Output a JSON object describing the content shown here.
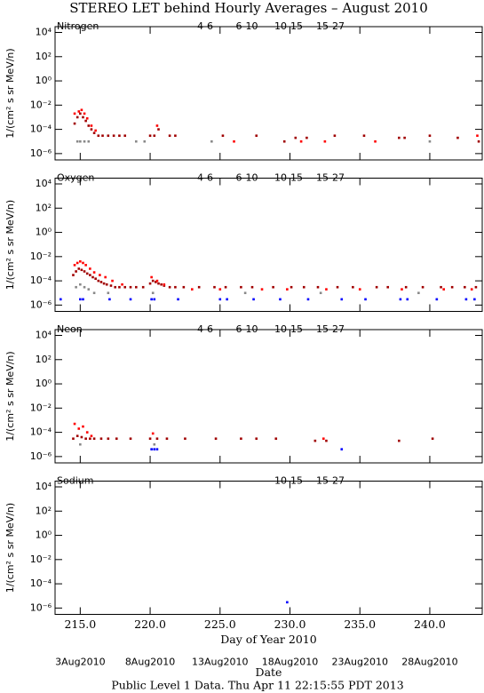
{
  "header": {
    "title": "STEREO LET behind Hourly Averages – August 2010"
  },
  "footer": {
    "text": "Public Level 1 Data. Thu Apr 11 22:15:55 PDT 2013"
  },
  "chart_data": [
    {
      "type": "scatter",
      "title": "Nitrogen",
      "ylabel": "1/(cm² s sr MeV/n)",
      "log_y": true,
      "xlim": [
        213.2,
        243.75
      ],
      "xticks": [
        215,
        220,
        225,
        230,
        235,
        240
      ],
      "ylim": [
        3e-07,
        30000
      ],
      "yticks": [
        {
          "value": 10000,
          "label": "10⁴"
        },
        {
          "value": 100,
          "label": "10²"
        },
        {
          "value": 1,
          "label": "10⁰"
        },
        {
          "value": 0.01,
          "label": "10⁻²"
        },
        {
          "value": 0.0001,
          "label": "10⁻⁴"
        },
        {
          "value": 1e-06,
          "label": "10⁻⁶"
        }
      ],
      "series": [
        {
          "name": "4-6",
          "color": "#a00000",
          "x": [
            214.6,
            214.8,
            215.0,
            215.2,
            215.4,
            215.6,
            215.8,
            216.0,
            216.3,
            216.6,
            217.0,
            217.4,
            217.8,
            218.2,
            220.0,
            220.3,
            220.6,
            221.4,
            221.8,
            225.2,
            227.6,
            229.6,
            230.4,
            231.2,
            233.2,
            235.3,
            237.8,
            238.2,
            240.0,
            242.0,
            243.5
          ],
          "values": [
            0.0003,
            0.001,
            0.002,
            0.001,
            0.0005,
            0.0002,
            0.0001,
            5e-05,
            3e-05,
            3e-05,
            3e-05,
            3e-05,
            3e-05,
            3e-05,
            3e-05,
            3e-05,
            0.0001,
            3e-05,
            3e-05,
            3e-05,
            3e-05,
            1e-05,
            2e-05,
            2e-05,
            3e-05,
            3e-05,
            2e-05,
            2e-05,
            3e-05,
            2e-05,
            1e-05
          ]
        },
        {
          "name": "6-10",
          "color": "#ff0000",
          "x": [
            214.6,
            214.9,
            215.1,
            215.3,
            215.5,
            215.8,
            216.1,
            220.5,
            226.0,
            230.8,
            232.5,
            236.1,
            243.4
          ],
          "values": [
            0.002,
            0.003,
            0.004,
            0.002,
            0.0008,
            0.0002,
            8e-05,
            0.0002,
            1e-05,
            1e-05,
            1e-05,
            1e-05,
            3e-05
          ]
        },
        {
          "name": "10-15",
          "color": "#888888",
          "x": [
            214.8,
            215.0,
            215.3,
            215.6,
            219.0,
            219.6,
            224.4,
            240.0
          ],
          "values": [
            1e-05,
            1e-05,
            1e-05,
            1e-05,
            1e-05,
            1e-05,
            1e-05,
            1e-05
          ]
        },
        {
          "name": "15-27",
          "color": "#0000ff",
          "x": [],
          "values": []
        }
      ]
    },
    {
      "type": "scatter",
      "title": "Oxygen",
      "ylabel": "1/(cm² s sr MeV/n)",
      "log_y": true,
      "xlim": [
        213.2,
        243.75
      ],
      "xticks": [
        215,
        220,
        225,
        230,
        235,
        240
      ],
      "ylim": [
        3e-07,
        30000
      ],
      "yticks": [
        {
          "value": 10000,
          "label": "10⁴"
        },
        {
          "value": 100,
          "label": "10²"
        },
        {
          "value": 1,
          "label": "10⁰"
        },
        {
          "value": 0.01,
          "label": "10⁻²"
        },
        {
          "value": 0.0001,
          "label": "10⁻⁴"
        },
        {
          "value": 1e-06,
          "label": "10⁻⁶"
        }
      ],
      "series": [
        {
          "name": "4-6",
          "color": "#a00000",
          "x": [
            214.5,
            214.7,
            214.9,
            215.1,
            215.3,
            215.5,
            215.7,
            215.9,
            216.1,
            216.3,
            216.5,
            216.7,
            216.9,
            217.2,
            217.5,
            217.8,
            218.2,
            218.6,
            219.0,
            219.5,
            220.0,
            220.2,
            220.4,
            220.6,
            220.8,
            221.0,
            221.4,
            221.8,
            222.4,
            223.5,
            224.6,
            225.4,
            226.5,
            227.3,
            228.8,
            230.1,
            231.0,
            232.0,
            233.4,
            234.5,
            236.2,
            237.0,
            238.3,
            239.5,
            240.8,
            241.6,
            242.5,
            243.3
          ],
          "values": [
            0.0003,
            0.0006,
            0.001,
            0.0008,
            0.0006,
            0.0004,
            0.0003,
            0.0002,
            0.00015,
            0.0001,
            8e-05,
            6e-05,
            5e-05,
            4e-05,
            3e-05,
            3e-05,
            3e-05,
            3e-05,
            3e-05,
            3e-05,
            6e-05,
            0.0001,
            8e-05,
            6e-05,
            5e-05,
            4e-05,
            3e-05,
            3e-05,
            3e-05,
            3e-05,
            3e-05,
            3e-05,
            3e-05,
            3e-05,
            3e-05,
            3e-05,
            3e-05,
            3e-05,
            3e-05,
            3e-05,
            3e-05,
            3e-05,
            3e-05,
            3e-05,
            3e-05,
            3e-05,
            3e-05,
            3e-05
          ]
        },
        {
          "name": "6-10",
          "color": "#ff0000",
          "x": [
            214.6,
            214.8,
            215.0,
            215.2,
            215.4,
            215.7,
            216.0,
            216.4,
            216.8,
            217.3,
            218.0,
            220.1,
            220.5,
            221.0,
            223.0,
            225.0,
            228.0,
            229.8,
            232.6,
            235.0,
            238.0,
            241.0,
            243.0
          ],
          "values": [
            0.002,
            0.003,
            0.004,
            0.003,
            0.002,
            0.001,
            0.0005,
            0.0003,
            0.0002,
            0.0001,
            5e-05,
            0.0002,
            0.0001,
            5e-05,
            2e-05,
            2e-05,
            2e-05,
            2e-05,
            2e-05,
            2e-05,
            2e-05,
            2e-05,
            2e-05
          ]
        },
        {
          "name": "10-15",
          "color": "#888888",
          "x": [
            214.7,
            215.0,
            215.3,
            215.6,
            216.0,
            217.0,
            220.2,
            226.8,
            232.2,
            239.2
          ],
          "values": [
            3e-05,
            5e-05,
            3e-05,
            2e-05,
            1e-05,
            1e-05,
            1e-05,
            1e-05,
            1e-05,
            1e-05
          ]
        },
        {
          "name": "15-27",
          "color": "#0000ff",
          "x": [
            213.6,
            215.0,
            215.2,
            217.1,
            218.6,
            220.1,
            220.3,
            222.0,
            225.0,
            225.5,
            227.4,
            229.3,
            231.3,
            233.7,
            235.4,
            237.9,
            238.4,
            240.5,
            242.6,
            243.2
          ],
          "values": [
            3e-06,
            3e-06,
            3e-06,
            3e-06,
            3e-06,
            3e-06,
            3e-06,
            3e-06,
            3e-06,
            3e-06,
            3e-06,
            3e-06,
            3e-06,
            3e-06,
            3e-06,
            3e-06,
            3e-06,
            3e-06,
            3e-06,
            3e-06
          ]
        }
      ]
    },
    {
      "type": "scatter",
      "title": "Neon",
      "ylabel": "1/(cm² s sr MeV/n)",
      "log_y": true,
      "xlim": [
        213.2,
        243.75
      ],
      "xticks": [
        215,
        220,
        225,
        230,
        235,
        240
      ],
      "ylim": [
        3e-07,
        30000
      ],
      "yticks": [
        {
          "value": 10000,
          "label": "10⁴"
        },
        {
          "value": 100,
          "label": "10²"
        },
        {
          "value": 1,
          "label": "10⁰"
        },
        {
          "value": 0.01,
          "label": "10⁻²"
        },
        {
          "value": 0.0001,
          "label": "10⁻⁴"
        },
        {
          "value": 1e-06,
          "label": "10⁻⁶"
        }
      ],
      "series": [
        {
          "name": "4-6",
          "color": "#a00000",
          "x": [
            214.5,
            214.8,
            215.1,
            215.4,
            215.7,
            216.0,
            216.5,
            217.0,
            217.6,
            218.6,
            220.0,
            220.5,
            221.2,
            222.5,
            224.7,
            226.5,
            227.6,
            229.0,
            231.8,
            232.6,
            237.8,
            240.2
          ],
          "values": [
            3e-05,
            5e-05,
            4e-05,
            3e-05,
            3e-05,
            3e-05,
            3e-05,
            3e-05,
            3e-05,
            3e-05,
            3e-05,
            3e-05,
            3e-05,
            3e-05,
            3e-05,
            3e-05,
            3e-05,
            3e-05,
            2e-05,
            2e-05,
            2e-05,
            3e-05
          ]
        },
        {
          "name": "6-10",
          "color": "#ff0000",
          "x": [
            214.6,
            214.9,
            215.2,
            215.5,
            215.8,
            220.2,
            232.4
          ],
          "values": [
            0.0005,
            0.0002,
            0.0003,
            0.0001,
            5e-05,
            8e-05,
            3e-05
          ]
        },
        {
          "name": "10-15",
          "color": "#888888",
          "x": [
            215.0,
            220.3
          ],
          "values": [
            1e-05,
            1e-05
          ]
        },
        {
          "name": "15-27",
          "color": "#0000ff",
          "x": [
            220.1,
            220.3,
            220.5,
            233.7
          ],
          "values": [
            4e-06,
            4e-06,
            4e-06,
            4e-06
          ]
        }
      ]
    },
    {
      "type": "scatter",
      "title": "Sodium",
      "ylabel": "1/(cm² s sr MeV/n)",
      "log_y": true,
      "xlim": [
        213.2,
        243.75
      ],
      "xticks": [
        {
          "value": 215,
          "label": "215.0"
        },
        {
          "value": 220,
          "label": "220.0"
        },
        {
          "value": 225,
          "label": "225.0"
        },
        {
          "value": 230,
          "label": "230.0"
        },
        {
          "value": 235,
          "label": "235.0"
        },
        {
          "value": 240,
          "label": "240.0"
        }
      ],
      "xlabel": "Day of Year 2010",
      "date_ticks": [
        {
          "value": 215,
          "label": "3Aug2010"
        },
        {
          "value": 220,
          "label": "8Aug2010"
        },
        {
          "value": 225,
          "label": "13Aug2010"
        },
        {
          "value": 230,
          "label": "18Aug2010"
        },
        {
          "value": 235,
          "label": "23Aug2010"
        },
        {
          "value": 240,
          "label": "28Aug2010"
        }
      ],
      "date_label": "Date",
      "ylim": [
        3e-07,
        30000
      ],
      "yticks": [
        {
          "value": 10000,
          "label": "10⁴"
        },
        {
          "value": 100,
          "label": "10²"
        },
        {
          "value": 1,
          "label": "10⁰"
        },
        {
          "value": 0.01,
          "label": "10⁻²"
        },
        {
          "value": 0.0001,
          "label": "10⁻⁴"
        },
        {
          "value": 1e-06,
          "label": "10⁻⁶"
        }
      ],
      "series": [
        {
          "name": "10-15",
          "color": "#888888",
          "x": [],
          "values": []
        },
        {
          "name": "15-27",
          "color": "#0000ff",
          "x": [
            229.8
          ],
          "values": [
            3e-06
          ]
        }
      ]
    }
  ]
}
